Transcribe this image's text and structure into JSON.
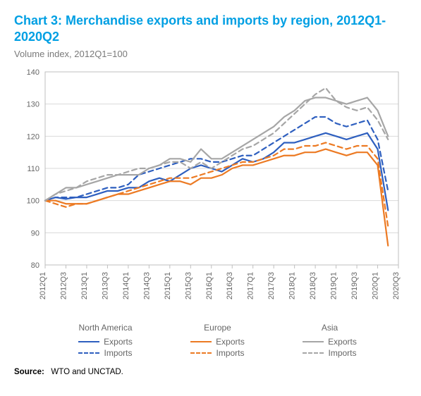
{
  "title": "Chart 3: Merchandise exports and imports by region, 2012Q1-2020Q2",
  "subtitle": "Volume index, 2012Q1=100",
  "source_label": "Source:",
  "source_text": "WTO and UNCTAD.",
  "chart": {
    "type": "line",
    "background_color": "#ffffff",
    "plot_border_color": "#bfbfbf",
    "grid_color": "#d9d9d9",
    "axis_text_color": "#666666",
    "axis_fontsize": 11,
    "ylim": [
      80,
      140
    ],
    "ytick_step": 10,
    "x_categories": [
      "2012Q1",
      "2012Q2",
      "2012Q3",
      "2012Q4",
      "2013Q1",
      "2013Q2",
      "2013Q3",
      "2013Q4",
      "2014Q1",
      "2014Q2",
      "2014Q3",
      "2014Q4",
      "2015Q1",
      "2015Q2",
      "2015Q3",
      "2015Q4",
      "2016Q1",
      "2016Q2",
      "2016Q3",
      "2016Q4",
      "2017Q1",
      "2017Q2",
      "2017Q3",
      "2017Q4",
      "2018Q1",
      "2018Q2",
      "2018Q3",
      "2018Q4",
      "2019Q1",
      "2019Q2",
      "2019Q3",
      "2019Q4",
      "2020Q1",
      "2020Q2",
      "2020Q3"
    ],
    "x_tick_every": 2,
    "line_width": 2.2,
    "series": [
      {
        "id": "na_exports",
        "region": "North America",
        "kind": "Exports",
        "color": "#2e5fbf",
        "dash": "solid",
        "values": [
          100,
          101,
          100.5,
          101,
          101,
          102,
          103,
          103,
          104,
          104,
          106,
          107,
          106,
          108,
          110,
          111,
          110,
          109,
          111,
          113,
          112,
          113,
          115,
          118,
          118,
          119,
          120,
          121,
          120,
          119,
          120,
          121,
          116,
          97
        ]
      },
      {
        "id": "na_imports",
        "region": "North America",
        "kind": "Imports",
        "color": "#2e5fbf",
        "dash": "dashed",
        "values": [
          100,
          101,
          101,
          101,
          102,
          103,
          104,
          104,
          105,
          108,
          109,
          110,
          111,
          112,
          113,
          113,
          112,
          112,
          113,
          114,
          114,
          116,
          118,
          120,
          122,
          124,
          126,
          126,
          124,
          123,
          124,
          125,
          119,
          103
        ]
      },
      {
        "id": "eu_exports",
        "region": "Europe",
        "kind": "Exports",
        "color": "#ec7a23",
        "dash": "solid",
        "values": [
          100,
          100,
          99,
          99,
          99,
          100,
          101,
          102,
          102,
          103,
          104,
          105,
          106,
          106,
          105,
          107,
          107,
          108,
          110,
          111,
          111,
          112,
          113,
          114,
          114,
          115,
          115,
          116,
          115,
          114,
          115,
          115,
          111,
          86
        ]
      },
      {
        "id": "eu_imports",
        "region": "Europe",
        "kind": "Imports",
        "color": "#ec7a23",
        "dash": "dashed",
        "values": [
          100,
          99,
          98,
          99,
          99,
          100,
          101,
          102,
          103,
          104,
          105,
          106,
          107,
          107,
          107,
          108,
          109,
          110,
          111,
          112,
          112,
          113,
          114,
          116,
          116,
          117,
          117,
          118,
          117,
          116,
          117,
          117,
          113,
          92
        ]
      },
      {
        "id": "as_exports",
        "region": "Asia",
        "kind": "Exports",
        "color": "#a6a6a6",
        "dash": "solid",
        "values": [
          100,
          102,
          104,
          104,
          105,
          106,
          107,
          108,
          108,
          108,
          110,
          111,
          113,
          113,
          112,
          116,
          113,
          113,
          115,
          117,
          119,
          121,
          123,
          126,
          128,
          131,
          132,
          132,
          131,
          130,
          131,
          132,
          128,
          120
        ]
      },
      {
        "id": "as_imports",
        "region": "Asia",
        "kind": "Imports",
        "color": "#a6a6a6",
        "dash": "dashed",
        "values": [
          100,
          102,
          103,
          104,
          106,
          107,
          108,
          108,
          109,
          110,
          110,
          111,
          112,
          112,
          110,
          112,
          110,
          112,
          114,
          116,
          117,
          119,
          121,
          124,
          127,
          130,
          133,
          135,
          131,
          129,
          128,
          129,
          125,
          119
        ]
      }
    ],
    "legend": {
      "groups": [
        {
          "header": "North America",
          "rows": [
            {
              "color": "#2e5fbf",
              "dash": "solid",
              "label": "Exports"
            },
            {
              "color": "#2e5fbf",
              "dash": "dashed",
              "label": "Imports"
            }
          ]
        },
        {
          "header": "Europe",
          "rows": [
            {
              "color": "#ec7a23",
              "dash": "solid",
              "label": "Exports"
            },
            {
              "color": "#ec7a23",
              "dash": "dashed",
              "label": "Imports"
            }
          ]
        },
        {
          "header": "Asia",
          "rows": [
            {
              "color": "#a6a6a6",
              "dash": "solid",
              "label": "Exports"
            },
            {
              "color": "#a6a6a6",
              "dash": "dashed",
              "label": "Imports"
            }
          ]
        }
      ]
    }
  }
}
